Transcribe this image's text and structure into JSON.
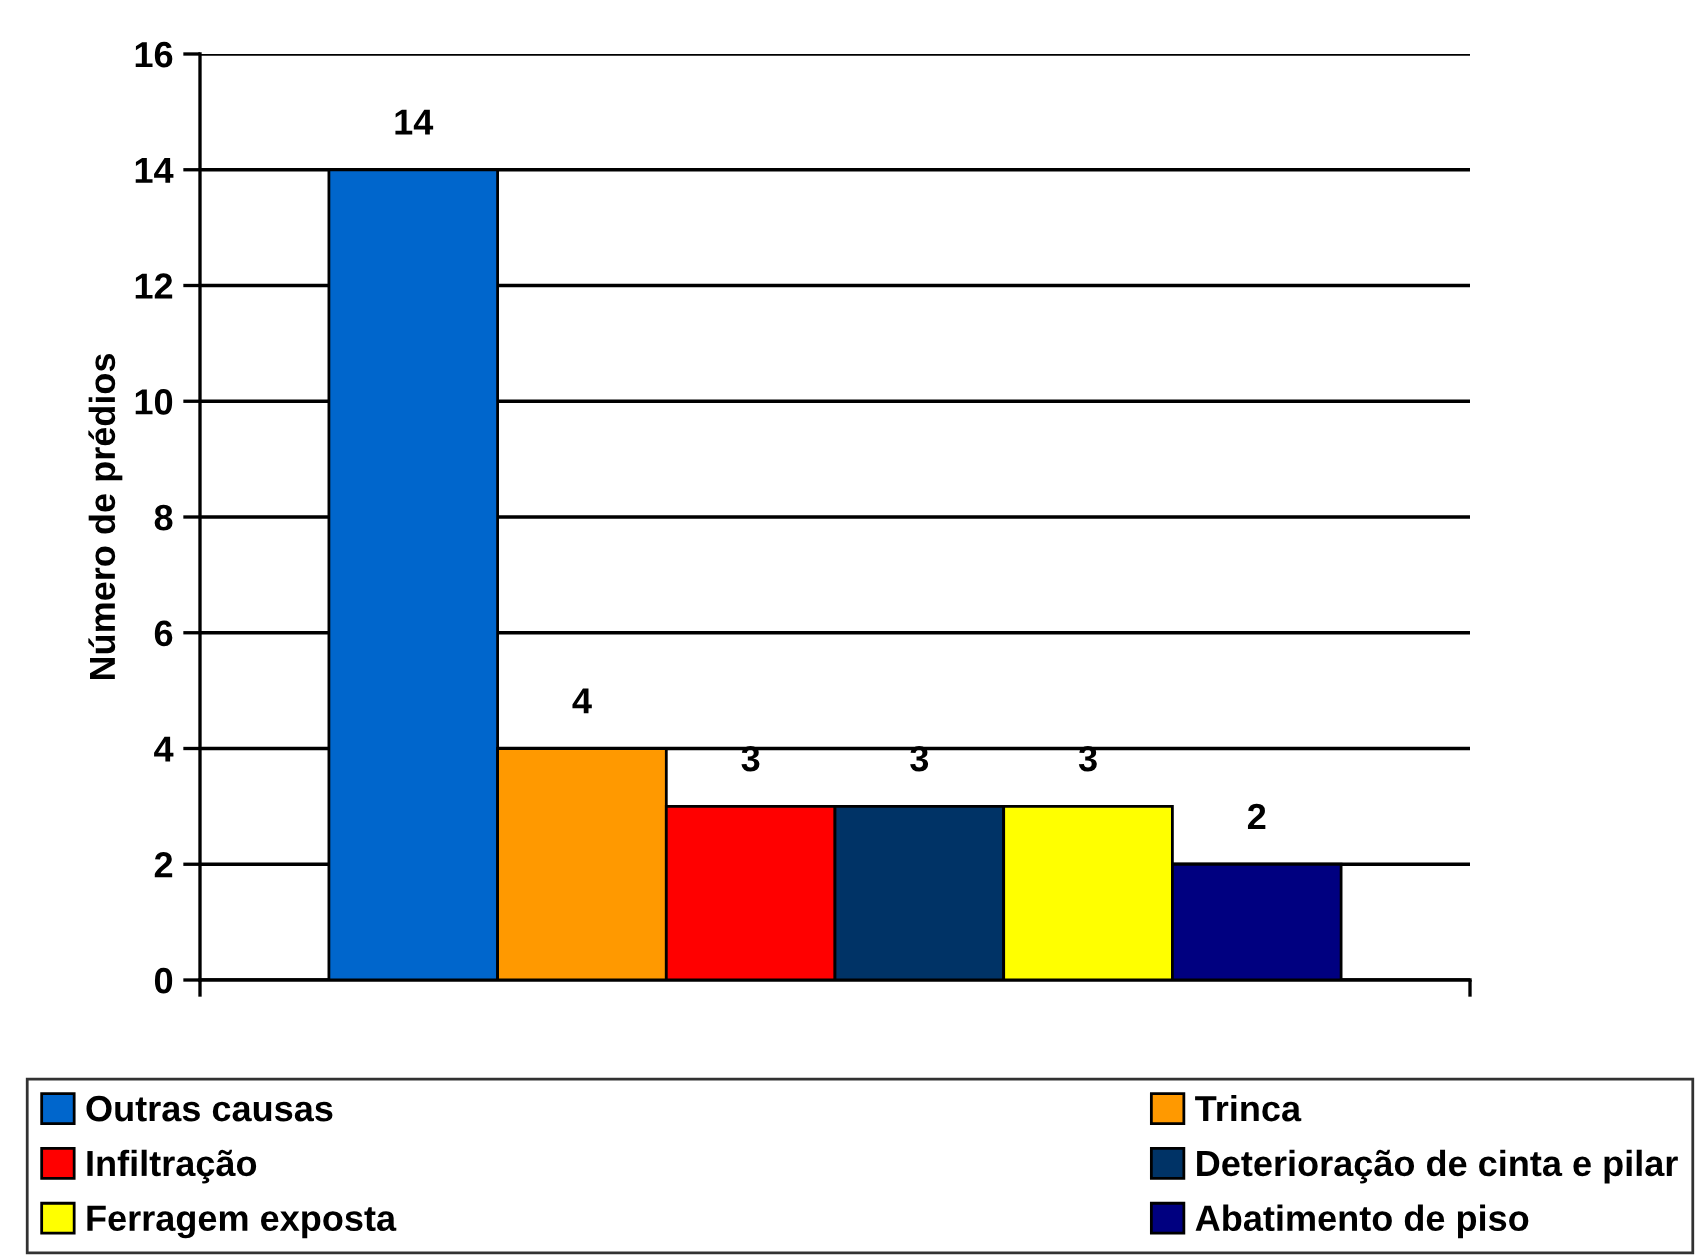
{
  "chart_data": {
    "type": "bar",
    "ylabel": "Número de prédios",
    "categories": [
      null
    ],
    "series": [
      {
        "name": "Outras causas",
        "color": "#0066cc",
        "values": [
          14
        ]
      },
      {
        "name": "Trinca",
        "color": "#ff9900",
        "values": [
          4
        ]
      },
      {
        "name": "Infiltração",
        "color": "#ff0000",
        "values": [
          3
        ]
      },
      {
        "name": "Deterioração de cinta e pilar",
        "color": "#003366",
        "values": [
          3
        ]
      },
      {
        "name": "Ferragem exposta",
        "color": "#ffff00",
        "values": [
          3
        ]
      },
      {
        "name": "Abatimento de piso",
        "color": "#000080",
        "values": [
          2
        ]
      }
    ],
    "ylim": [
      0,
      16
    ],
    "yticks": [
      0,
      2,
      4,
      6,
      8,
      10,
      12,
      14,
      16
    ],
    "grid": "y",
    "legend": "bottom",
    "data_labels": true
  }
}
